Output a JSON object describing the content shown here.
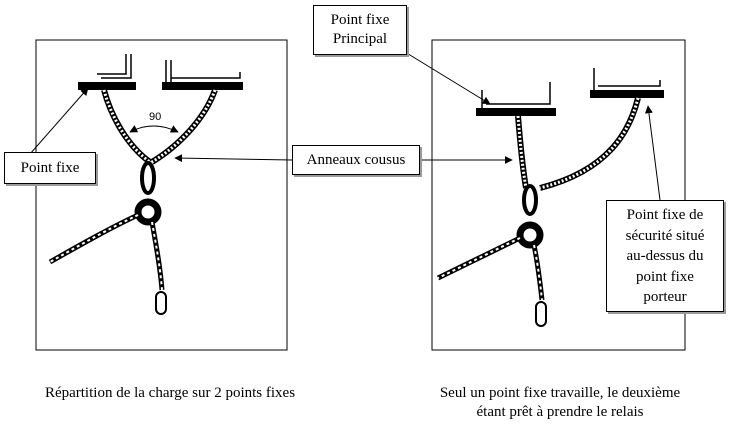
{
  "labels": {
    "point_fixe": "Point fixe",
    "anneaux_cousus": "Anneaux cousus",
    "point_fixe_principal": [
      "Point fixe",
      "Principal"
    ],
    "point_fixe_securite": [
      "Point fixe de",
      "sécurité situé",
      "au-dessus du",
      "point fixe",
      "porteur"
    ],
    "angle": "90"
  },
  "captions": {
    "left": "Répartition de la charge sur 2 points fixes",
    "right": [
      "Seul un point fixe travaille, le deuxième",
      "étant prêt à prendre le relais"
    ]
  }
}
